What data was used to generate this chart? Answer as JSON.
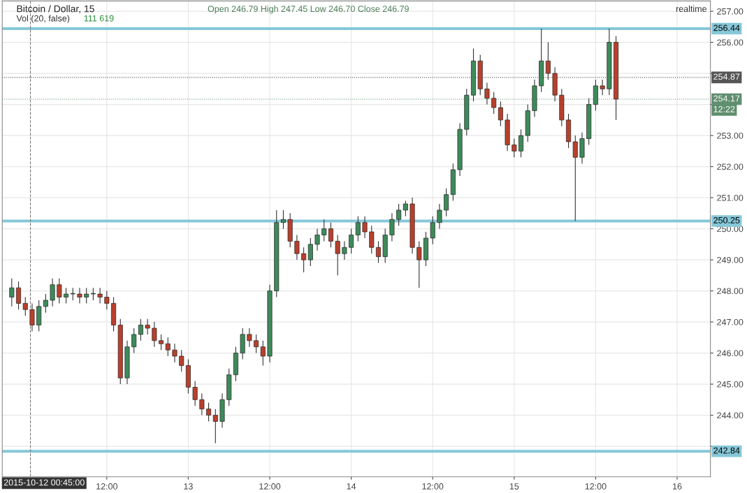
{
  "chart_data": {
    "type": "candlestick",
    "title": "Bitcoin / Dollar, 15",
    "annotations": [
      "Open 246.79 High 247.45 Low 246.70 Close 246.79",
      "Vol (20, false)",
      "111 619",
      "realtime",
      "12:22"
    ],
    "x": [
      "2015-10-11T22:00",
      "2015-10-11T23:00",
      "2015-10-12T00:00",
      "2015-10-12T01:00",
      "2015-10-12T02:00",
      "2015-10-12T03:00",
      "2015-10-12T04:00",
      "2015-10-12T05:00",
      "2015-10-12T06:00",
      "2015-10-12T07:00",
      "2015-10-12T08:00",
      "2015-10-12T09:00",
      "2015-10-12T10:00",
      "2015-10-12T11:00",
      "2015-10-12T12:00",
      "2015-10-12T13:00",
      "2015-10-12T14:00",
      "2015-10-12T15:00",
      "2015-10-12T16:00",
      "2015-10-12T17:00",
      "2015-10-12T18:00",
      "2015-10-12T19:00",
      "2015-10-12T20:00",
      "2015-10-12T21:00",
      "2015-10-12T22:00",
      "2015-10-12T23:00",
      "2015-10-13T00:00",
      "2015-10-13T01:00",
      "2015-10-13T02:00",
      "2015-10-13T03:00",
      "2015-10-13T04:00",
      "2015-10-13T05:00",
      "2015-10-13T06:00",
      "2015-10-13T07:00",
      "2015-10-13T08:00",
      "2015-10-13T09:00",
      "2015-10-13T10:00",
      "2015-10-13T11:00",
      "2015-10-13T12:00",
      "2015-10-13T13:00",
      "2015-10-13T14:00",
      "2015-10-13T15:00",
      "2015-10-13T16:00",
      "2015-10-13T17:00",
      "2015-10-13T18:00",
      "2015-10-13T19:00",
      "2015-10-13T20:00",
      "2015-10-13T21:00",
      "2015-10-13T22:00",
      "2015-10-13T23:00",
      "2015-10-14T00:00",
      "2015-10-14T01:00",
      "2015-10-14T02:00",
      "2015-10-14T03:00",
      "2015-10-14T04:00",
      "2015-10-14T05:00",
      "2015-10-14T06:00",
      "2015-10-14T07:00",
      "2015-10-14T08:00",
      "2015-10-14T09:00",
      "2015-10-14T10:00",
      "2015-10-14T11:00",
      "2015-10-14T12:00",
      "2015-10-14T13:00",
      "2015-10-14T14:00",
      "2015-10-14T15:00",
      "2015-10-14T16:00",
      "2015-10-14T17:00",
      "2015-10-14T18:00",
      "2015-10-14T19:00",
      "2015-10-14T20:00",
      "2015-10-14T21:00",
      "2015-10-14T22:00",
      "2015-10-14T23:00",
      "2015-10-15T00:00",
      "2015-10-15T01:00",
      "2015-10-15T02:00",
      "2015-10-15T03:00",
      "2015-10-15T04:00",
      "2015-10-15T05:00",
      "2015-10-15T06:00",
      "2015-10-15T07:00",
      "2015-10-15T08:00",
      "2015-10-15T09:00",
      "2015-10-15T10:00",
      "2015-10-15T11:00",
      "2015-10-15T12:00",
      "2015-10-15T13:00",
      "2015-10-15T14:00",
      "2015-10-15T15:00"
    ],
    "ohlc": [
      [
        247.8,
        248.4,
        247.5,
        248.1
      ],
      [
        248.1,
        248.3,
        247.4,
        247.6
      ],
      [
        247.6,
        247.8,
        247.2,
        247.4
      ],
      [
        247.4,
        247.6,
        246.7,
        246.9
      ],
      [
        246.9,
        247.7,
        246.7,
        247.5
      ],
      [
        247.5,
        247.9,
        247.3,
        247.7
      ],
      [
        247.7,
        248.4,
        247.5,
        248.2
      ],
      [
        248.2,
        248.4,
        247.6,
        247.8
      ],
      [
        247.8,
        248.1,
        247.6,
        247.9
      ],
      [
        247.9,
        248.1,
        247.7,
        247.9
      ],
      [
        247.9,
        248.1,
        247.6,
        247.8
      ],
      [
        247.8,
        248.1,
        247.6,
        247.9
      ],
      [
        247.9,
        248.1,
        247.7,
        247.9
      ],
      [
        247.9,
        248.1,
        247.6,
        247.8
      ],
      [
        247.8,
        248.0,
        247.4,
        247.6
      ],
      [
        247.6,
        247.8,
        246.7,
        246.9
      ],
      [
        246.9,
        247.1,
        245.0,
        245.2
      ],
      [
        245.2,
        246.4,
        245.0,
        246.2
      ],
      [
        246.2,
        246.8,
        246.0,
        246.6
      ],
      [
        246.6,
        247.1,
        246.4,
        246.9
      ],
      [
        246.9,
        247.1,
        246.6,
        246.8
      ],
      [
        246.8,
        247.0,
        246.2,
        246.4
      ],
      [
        246.4,
        246.6,
        246.1,
        246.3
      ],
      [
        246.3,
        246.5,
        245.9,
        246.1
      ],
      [
        246.1,
        246.3,
        245.7,
        245.9
      ],
      [
        245.9,
        246.1,
        245.4,
        245.6
      ],
      [
        245.6,
        245.8,
        244.7,
        244.9
      ],
      [
        244.9,
        245.1,
        244.3,
        244.5
      ],
      [
        244.5,
        244.7,
        244.0,
        244.2
      ],
      [
        244.2,
        244.4,
        243.8,
        244.0
      ],
      [
        244.0,
        244.2,
        243.1,
        243.8
      ],
      [
        243.8,
        244.7,
        243.6,
        244.5
      ],
      [
        244.5,
        245.5,
        244.3,
        245.3
      ],
      [
        245.3,
        246.2,
        245.1,
        246.0
      ],
      [
        246.0,
        246.8,
        245.8,
        246.6
      ],
      [
        246.6,
        246.8,
        246.2,
        246.4
      ],
      [
        246.4,
        246.6,
        246.0,
        246.2
      ],
      [
        246.2,
        246.4,
        245.6,
        245.9
      ],
      [
        245.9,
        248.2,
        245.7,
        248.0
      ],
      [
        248.0,
        250.6,
        247.8,
        250.2
      ],
      [
        250.2,
        250.6,
        250.0,
        250.3
      ],
      [
        250.3,
        250.5,
        249.4,
        249.6
      ],
      [
        249.6,
        249.8,
        249.0,
        249.2
      ],
      [
        249.2,
        249.4,
        248.6,
        249.0
      ],
      [
        249.0,
        249.7,
        248.8,
        249.5
      ],
      [
        249.5,
        250.0,
        249.3,
        249.8
      ],
      [
        249.8,
        250.3,
        249.6,
        250.0
      ],
      [
        250.0,
        250.2,
        249.4,
        249.6
      ],
      [
        249.6,
        249.8,
        248.5,
        249.2
      ],
      [
        249.2,
        249.6,
        249.0,
        249.4
      ],
      [
        249.4,
        250.0,
        249.2,
        249.8
      ],
      [
        249.8,
        250.4,
        249.6,
        250.2
      ],
      [
        250.2,
        250.4,
        249.7,
        249.9
      ],
      [
        249.9,
        250.1,
        249.2,
        249.4
      ],
      [
        249.4,
        249.6,
        248.9,
        249.1
      ],
      [
        249.1,
        250.0,
        248.9,
        249.8
      ],
      [
        249.8,
        250.5,
        249.6,
        250.3
      ],
      [
        250.3,
        250.8,
        250.1,
        250.6
      ],
      [
        250.6,
        250.9,
        250.4,
        250.8
      ],
      [
        250.8,
        251.0,
        249.2,
        249.4
      ],
      [
        249.4,
        249.6,
        248.1,
        249.0
      ],
      [
        249.0,
        249.9,
        248.8,
        249.7
      ],
      [
        249.7,
        250.4,
        249.5,
        250.2
      ],
      [
        250.2,
        250.8,
        250.0,
        250.6
      ],
      [
        250.6,
        251.3,
        250.4,
        251.1
      ],
      [
        251.1,
        252.1,
        250.9,
        251.9
      ],
      [
        251.9,
        253.4,
        251.7,
        253.2
      ],
      [
        253.2,
        254.5,
        253.0,
        254.3
      ],
      [
        254.3,
        255.8,
        254.1,
        255.4
      ],
      [
        255.4,
        255.6,
        254.3,
        254.5
      ],
      [
        254.5,
        254.7,
        254.0,
        254.2
      ],
      [
        254.2,
        254.4,
        253.7,
        253.9
      ],
      [
        253.9,
        254.1,
        253.3,
        253.5
      ],
      [
        253.5,
        253.7,
        252.5,
        252.7
      ],
      [
        252.7,
        252.9,
        252.3,
        252.5
      ],
      [
        252.5,
        253.2,
        252.3,
        253.0
      ],
      [
        253.0,
        254.0,
        252.8,
        253.8
      ],
      [
        253.8,
        254.8,
        253.6,
        254.6
      ],
      [
        254.6,
        256.44,
        254.4,
        255.4
      ],
      [
        255.4,
        256.0,
        254.8,
        255.0
      ],
      [
        255.0,
        255.2,
        254.1,
        254.3
      ],
      [
        254.3,
        254.5,
        253.3,
        253.5
      ],
      [
        253.5,
        253.7,
        252.6,
        252.8
      ],
      [
        252.8,
        253.0,
        250.25,
        252.3
      ],
      [
        252.3,
        253.1,
        252.1,
        252.9
      ],
      [
        252.9,
        254.2,
        252.7,
        254.0
      ],
      [
        254.0,
        254.8,
        253.8,
        254.6
      ],
      [
        254.6,
        254.8,
        254.3,
        254.5
      ],
      [
        254.5,
        256.44,
        254.3,
        256.0
      ],
      [
        256.0,
        256.2,
        253.5,
        254.17
      ]
    ],
    "colors": [
      "#3e8a5a",
      "#b8402c",
      "#b8402c",
      "#b8402c",
      "#3e8a5a",
      "#3e8a5a",
      "#3e8a5a",
      "#b8402c",
      "#3e8a5a",
      "#3e8a5a",
      "#b8402c",
      "#3e8a5a",
      "#3e8a5a",
      "#b8402c",
      "#b8402c",
      "#b8402c",
      "#b8402c",
      "#3e8a5a",
      "#3e8a5a",
      "#3e8a5a",
      "#b8402c",
      "#b8402c",
      "#b8402c",
      "#b8402c",
      "#b8402c",
      "#b8402c",
      "#b8402c",
      "#b8402c",
      "#b8402c",
      "#b8402c",
      "#b8402c",
      "#3e8a5a",
      "#3e8a5a",
      "#3e8a5a",
      "#3e8a5a",
      "#b8402c",
      "#b8402c",
      "#b8402c",
      "#3e8a5a",
      "#3e8a5a",
      "#3e8a5a",
      "#b8402c",
      "#b8402c",
      "#b8402c",
      "#3e8a5a",
      "#3e8a5a",
      "#3e8a5a",
      "#b8402c",
      "#b8402c",
      "#3e8a5a",
      "#3e8a5a",
      "#3e8a5a",
      "#b8402c",
      "#b8402c",
      "#b8402c",
      "#3e8a5a",
      "#3e8a5a",
      "#3e8a5a",
      "#3e8a5a",
      "#b8402c",
      "#b8402c",
      "#3e8a5a",
      "#3e8a5a",
      "#3e8a5a",
      "#3e8a5a",
      "#3e8a5a",
      "#3e8a5a",
      "#3e8a5a",
      "#3e8a5a",
      "#b8402c",
      "#b8402c",
      "#b8402c",
      "#b8402c",
      "#b8402c",
      "#b8402c",
      "#3e8a5a",
      "#3e8a5a",
      "#3e8a5a",
      "#3e8a5a",
      "#b8402c",
      "#b8402c",
      "#b8402c",
      "#b8402c",
      "#b8402c",
      "#3e8a5a",
      "#3e8a5a",
      "#3e8a5a",
      "#b8402c",
      "#3e8a5a",
      "#b8402c"
    ],
    "xlim": [
      "2015-10-11T20:36",
      "2015-10-16T04:54"
    ],
    "xticks": [
      {
        "value": "2015-10-12T12:00",
        "label": "12:00"
      },
      {
        "value": "2015-10-13",
        "label": "13"
      },
      {
        "value": "2015-10-13T12:00",
        "label": "12:00"
      },
      {
        "value": "2015-10-14",
        "label": "14"
      },
      {
        "value": "2015-10-14T12:00",
        "label": "12:00"
      },
      {
        "value": "2015-10-15",
        "label": "15"
      },
      {
        "value": "2015-10-15T12:00",
        "label": "12:00"
      },
      {
        "value": "2015-10-16",
        "label": "16"
      }
    ],
    "ylim": [
      242.02,
      257.33
    ],
    "yticks": [
      {
        "value": 243,
        "label": null
      },
      {
        "value": 244,
        "label": "244.00"
      },
      {
        "value": 245,
        "label": "245.00"
      },
      {
        "value": 246,
        "label": "246.00"
      },
      {
        "value": 247,
        "label": "247.00"
      },
      {
        "value": 248,
        "label": "248.00"
      },
      {
        "value": 249,
        "label": "249.00"
      },
      {
        "value": 250,
        "label": "250.00"
      },
      {
        "value": 251,
        "label": "251.00"
      },
      {
        "value": 252,
        "label": "252.00"
      },
      {
        "value": 253,
        "label": "253.00"
      },
      {
        "value": 254,
        "label": null
      },
      {
        "value": 255,
        "label": null
      },
      {
        "value": 256,
        "label": "256.00"
      },
      {
        "value": 257,
        "label": "257.00"
      }
    ],
    "ref_lines": [
      {
        "axis": "y",
        "value": 256.44,
        "label": "256.44",
        "color": "#86c7d8",
        "line_style": "solid"
      },
      {
        "axis": "y",
        "value": 250.25,
        "label": "250.25",
        "color": "#86c7d8",
        "line_style": "solid"
      },
      {
        "axis": "y",
        "value": 242.84,
        "label": "242.84",
        "color": "#86c7d8",
        "line_style": "solid"
      },
      {
        "axis": "y",
        "value": 254.87,
        "label": "254.87",
        "color": "#555555",
        "line_style": "dotted"
      },
      {
        "axis": "y",
        "value": 254.17,
        "label": "254.17",
        "color": "#5f8f6e",
        "line_style": "dotted"
      },
      {
        "axis": "x",
        "value": "2015-10-12T00:45",
        "label": "2015-10-12 00:45:00",
        "color": "#777777",
        "line_style": "dashed"
      }
    ],
    "grid": true,
    "legend": false
  }
}
